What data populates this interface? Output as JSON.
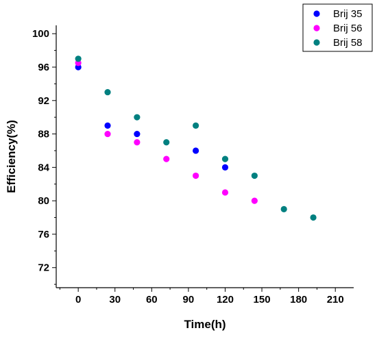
{
  "chart_data": {
    "type": "scatter",
    "title": "",
    "xlabel": "Time(h)",
    "ylabel": "Efficiency(%)",
    "xlim": [
      -18,
      225
    ],
    "ylim": [
      69.6,
      101
    ],
    "xticks": [
      0,
      30,
      60,
      90,
      120,
      150,
      180,
      210
    ],
    "yticks": [
      72,
      76,
      80,
      84,
      88,
      92,
      96,
      100
    ],
    "grid": false,
    "legend_position": "top-right",
    "series": [
      {
        "name": "Brij 35",
        "color": "#0000ff",
        "points": [
          [
            0,
            96
          ],
          [
            24,
            89
          ],
          [
            48,
            88
          ],
          [
            96,
            86
          ],
          [
            120,
            84
          ]
        ]
      },
      {
        "name": "Brij 56",
        "color": "#ff00ff",
        "points": [
          [
            0,
            96.5
          ],
          [
            24,
            88
          ],
          [
            48,
            87
          ],
          [
            72,
            85
          ],
          [
            96,
            83
          ],
          [
            120,
            81
          ],
          [
            144,
            80
          ]
        ]
      },
      {
        "name": "Brij 58",
        "color": "#008080",
        "points": [
          [
            0,
            97
          ],
          [
            24,
            93
          ],
          [
            48,
            90
          ],
          [
            72,
            87
          ],
          [
            96,
            89
          ],
          [
            120,
            85
          ],
          [
            144,
            83
          ],
          [
            168,
            79
          ],
          [
            192,
            78
          ]
        ]
      }
    ]
  }
}
